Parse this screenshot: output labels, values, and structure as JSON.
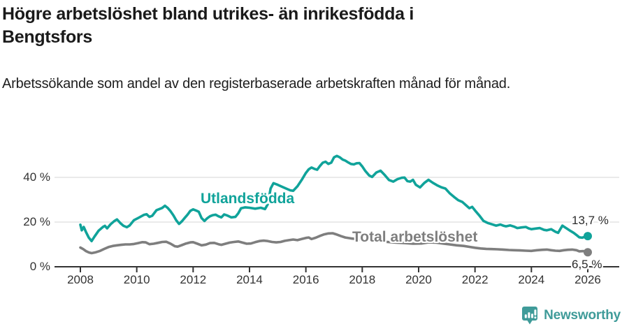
{
  "chart_data": {
    "type": "line",
    "title": "Högre arbetslöshet bland utrikes- än inrikesfödda i Bengtsfors",
    "subtitle": "Arbetssökande som andel av den registerbaserade arbetskraften månad för månad.",
    "legend_position": "inline-labels",
    "grid": true,
    "grid_color": "#dddddd",
    "axis_color": "#333333",
    "x_axis": {
      "ticks": [
        2008,
        2010,
        2012,
        2014,
        2016,
        2018,
        2020,
        2022,
        2024,
        2026
      ],
      "range": [
        2007.1,
        2027.1
      ],
      "unit": "year"
    },
    "y_axis": {
      "ticks": [
        0,
        20,
        40
      ],
      "tick_labels": [
        "0 %",
        "20 %",
        "40 %"
      ],
      "range": [
        0,
        53
      ],
      "unit": "percent"
    },
    "series": [
      {
        "name": "Utlandsfödda",
        "color": "#10a39a",
        "end_label": "13,7 %",
        "end_value": 13.7,
        "points": [
          [
            2008.0,
            18.8
          ],
          [
            2008.05,
            16.3
          ],
          [
            2008.12,
            17.8
          ],
          [
            2008.2,
            15.5
          ],
          [
            2008.3,
            13.0
          ],
          [
            2008.4,
            11.5
          ],
          [
            2008.5,
            13.5
          ],
          [
            2008.65,
            16.2
          ],
          [
            2008.8,
            17.8
          ],
          [
            2008.87,
            18.3
          ],
          [
            2008.95,
            17.2
          ],
          [
            2009.07,
            19.0
          ],
          [
            2009.2,
            20.4
          ],
          [
            2009.3,
            21.2
          ],
          [
            2009.42,
            19.5
          ],
          [
            2009.53,
            18.3
          ],
          [
            2009.65,
            17.7
          ],
          [
            2009.75,
            18.5
          ],
          [
            2009.9,
            20.8
          ],
          [
            2010.05,
            21.8
          ],
          [
            2010.25,
            23.2
          ],
          [
            2010.35,
            23.5
          ],
          [
            2010.45,
            22.3
          ],
          [
            2010.55,
            22.8
          ],
          [
            2010.7,
            25.3
          ],
          [
            2010.8,
            25.8
          ],
          [
            2010.9,
            26.3
          ],
          [
            2011.0,
            27.3
          ],
          [
            2011.1,
            26.3
          ],
          [
            2011.2,
            24.8
          ],
          [
            2011.3,
            23.0
          ],
          [
            2011.4,
            20.8
          ],
          [
            2011.5,
            19.2
          ],
          [
            2011.6,
            20.3
          ],
          [
            2011.7,
            21.8
          ],
          [
            2011.8,
            23.3
          ],
          [
            2011.9,
            25.0
          ],
          [
            2012.0,
            25.7
          ],
          [
            2012.1,
            25.2
          ],
          [
            2012.2,
            24.6
          ],
          [
            2012.3,
            21.8
          ],
          [
            2012.4,
            20.5
          ],
          [
            2012.5,
            21.7
          ],
          [
            2012.6,
            22.6
          ],
          [
            2012.7,
            23.1
          ],
          [
            2012.8,
            23.3
          ],
          [
            2012.9,
            22.6
          ],
          [
            2013.0,
            22.1
          ],
          [
            2013.1,
            23.4
          ],
          [
            2013.2,
            23.0
          ],
          [
            2013.35,
            22.1
          ],
          [
            2013.5,
            22.3
          ],
          [
            2013.6,
            23.9
          ],
          [
            2013.7,
            26.2
          ],
          [
            2013.85,
            26.6
          ],
          [
            2014.0,
            26.4
          ],
          [
            2014.2,
            26.0
          ],
          [
            2014.4,
            26.4
          ],
          [
            2014.55,
            25.8
          ],
          [
            2014.65,
            28.0
          ],
          [
            2014.75,
            35.0
          ],
          [
            2014.85,
            37.4
          ],
          [
            2015.0,
            36.7
          ],
          [
            2015.15,
            35.8
          ],
          [
            2015.3,
            35.0
          ],
          [
            2015.45,
            34.2
          ],
          [
            2015.55,
            34.0
          ],
          [
            2015.7,
            36.0
          ],
          [
            2015.85,
            38.8
          ],
          [
            2016.0,
            42.0
          ],
          [
            2016.1,
            43.6
          ],
          [
            2016.2,
            44.4
          ],
          [
            2016.3,
            43.8
          ],
          [
            2016.4,
            43.4
          ],
          [
            2016.5,
            45.1
          ],
          [
            2016.6,
            46.6
          ],
          [
            2016.7,
            47.0
          ],
          [
            2016.8,
            46.0
          ],
          [
            2016.9,
            46.6
          ],
          [
            2017.0,
            49.0
          ],
          [
            2017.1,
            49.6
          ],
          [
            2017.2,
            49.0
          ],
          [
            2017.3,
            48.0
          ],
          [
            2017.4,
            47.5
          ],
          [
            2017.5,
            46.7
          ],
          [
            2017.6,
            46.0
          ],
          [
            2017.7,
            45.8
          ],
          [
            2017.8,
            46.3
          ],
          [
            2017.9,
            46.4
          ],
          [
            2018.0,
            44.9
          ],
          [
            2018.1,
            43.0
          ],
          [
            2018.25,
            40.8
          ],
          [
            2018.35,
            40.2
          ],
          [
            2018.5,
            42.2
          ],
          [
            2018.65,
            43.0
          ],
          [
            2018.8,
            41.0
          ],
          [
            2018.95,
            38.8
          ],
          [
            2019.1,
            38.1
          ],
          [
            2019.25,
            39.2
          ],
          [
            2019.4,
            39.8
          ],
          [
            2019.5,
            39.9
          ],
          [
            2019.6,
            38.3
          ],
          [
            2019.7,
            38.1
          ],
          [
            2019.8,
            38.9
          ],
          [
            2019.9,
            36.7
          ],
          [
            2020.05,
            35.5
          ],
          [
            2020.2,
            37.5
          ],
          [
            2020.35,
            38.9
          ],
          [
            2020.5,
            37.6
          ],
          [
            2020.65,
            36.5
          ],
          [
            2020.8,
            35.6
          ],
          [
            2020.95,
            35.0
          ],
          [
            2021.1,
            32.9
          ],
          [
            2021.25,
            31.3
          ],
          [
            2021.4,
            29.8
          ],
          [
            2021.55,
            29.0
          ],
          [
            2021.7,
            27.3
          ],
          [
            2021.8,
            26.2
          ],
          [
            2021.9,
            26.8
          ],
          [
            2022.0,
            25.2
          ],
          [
            2022.15,
            23.0
          ],
          [
            2022.3,
            20.5
          ],
          [
            2022.45,
            19.6
          ],
          [
            2022.6,
            19.0
          ],
          [
            2022.75,
            18.4
          ],
          [
            2022.9,
            18.9
          ],
          [
            2023.0,
            18.4
          ],
          [
            2023.1,
            18.1
          ],
          [
            2023.25,
            18.5
          ],
          [
            2023.4,
            17.9
          ],
          [
            2023.5,
            17.3
          ],
          [
            2023.65,
            17.6
          ],
          [
            2023.8,
            17.8
          ],
          [
            2023.9,
            17.2
          ],
          [
            2024.0,
            16.8
          ],
          [
            2024.15,
            17.1
          ],
          [
            2024.3,
            17.3
          ],
          [
            2024.45,
            16.5
          ],
          [
            2024.55,
            16.3
          ],
          [
            2024.7,
            16.8
          ],
          [
            2024.85,
            15.7
          ],
          [
            2024.95,
            15.2
          ],
          [
            2025.1,
            18.4
          ],
          [
            2025.2,
            17.6
          ],
          [
            2025.35,
            16.3
          ],
          [
            2025.5,
            15.2
          ],
          [
            2025.6,
            14.2
          ],
          [
            2025.7,
            13.2
          ],
          [
            2025.8,
            13.0
          ],
          [
            2025.9,
            13.4
          ],
          [
            2026.0,
            13.7
          ]
        ]
      },
      {
        "name": "Total arbetslöshet",
        "color": "#7e7e7e",
        "end_label": "6,5 %",
        "end_value": 6.5,
        "points": [
          [
            2008.0,
            8.6
          ],
          [
            2008.1,
            7.9
          ],
          [
            2008.2,
            7.0
          ],
          [
            2008.3,
            6.4
          ],
          [
            2008.4,
            6.1
          ],
          [
            2008.55,
            6.5
          ],
          [
            2008.7,
            7.1
          ],
          [
            2008.85,
            8.0
          ],
          [
            2009.0,
            8.8
          ],
          [
            2009.15,
            9.3
          ],
          [
            2009.3,
            9.6
          ],
          [
            2009.45,
            9.8
          ],
          [
            2009.6,
            10.0
          ],
          [
            2009.75,
            10.0
          ],
          [
            2009.9,
            10.2
          ],
          [
            2010.05,
            10.6
          ],
          [
            2010.2,
            11.0
          ],
          [
            2010.32,
            10.9
          ],
          [
            2010.45,
            10.1
          ],
          [
            2010.6,
            10.3
          ],
          [
            2010.75,
            10.7
          ],
          [
            2010.9,
            11.1
          ],
          [
            2011.05,
            11.2
          ],
          [
            2011.2,
            10.3
          ],
          [
            2011.35,
            9.2
          ],
          [
            2011.45,
            9.0
          ],
          [
            2011.6,
            9.7
          ],
          [
            2011.75,
            10.4
          ],
          [
            2011.9,
            10.9
          ],
          [
            2012.0,
            11.0
          ],
          [
            2012.15,
            10.3
          ],
          [
            2012.3,
            9.6
          ],
          [
            2012.45,
            9.9
          ],
          [
            2012.6,
            10.6
          ],
          [
            2012.75,
            10.7
          ],
          [
            2012.9,
            10.1
          ],
          [
            2013.0,
            9.8
          ],
          [
            2013.15,
            10.3
          ],
          [
            2013.3,
            10.8
          ],
          [
            2013.45,
            11.1
          ],
          [
            2013.6,
            11.3
          ],
          [
            2013.75,
            10.8
          ],
          [
            2013.9,
            10.3
          ],
          [
            2014.05,
            10.4
          ],
          [
            2014.2,
            11.0
          ],
          [
            2014.35,
            11.5
          ],
          [
            2014.5,
            11.7
          ],
          [
            2014.65,
            11.5
          ],
          [
            2014.8,
            11.1
          ],
          [
            2014.95,
            10.9
          ],
          [
            2015.1,
            11.1
          ],
          [
            2015.25,
            11.6
          ],
          [
            2015.4,
            11.9
          ],
          [
            2015.55,
            12.2
          ],
          [
            2015.7,
            11.9
          ],
          [
            2015.85,
            12.4
          ],
          [
            2016.0,
            12.9
          ],
          [
            2016.1,
            13.1
          ],
          [
            2016.2,
            12.4
          ],
          [
            2016.35,
            13.0
          ],
          [
            2016.5,
            13.8
          ],
          [
            2016.65,
            14.5
          ],
          [
            2016.8,
            14.9
          ],
          [
            2016.95,
            15.0
          ],
          [
            2017.1,
            14.4
          ],
          [
            2017.25,
            13.7
          ],
          [
            2017.4,
            13.1
          ],
          [
            2017.6,
            12.7
          ],
          [
            2017.8,
            12.4
          ],
          [
            2018.0,
            12.2
          ],
          [
            2018.3,
            11.9
          ],
          [
            2018.6,
            11.5
          ],
          [
            2018.9,
            11.1
          ],
          [
            2019.2,
            10.8
          ],
          [
            2019.5,
            10.6
          ],
          [
            2019.8,
            10.3
          ],
          [
            2020.1,
            10.4
          ],
          [
            2020.35,
            10.9
          ],
          [
            2020.6,
            10.8
          ],
          [
            2020.85,
            10.4
          ],
          [
            2021.1,
            10.0
          ],
          [
            2021.35,
            9.6
          ],
          [
            2021.6,
            9.3
          ],
          [
            2021.8,
            8.9
          ],
          [
            2022.0,
            8.5
          ],
          [
            2022.2,
            8.2
          ],
          [
            2022.4,
            8.0
          ],
          [
            2022.6,
            7.9
          ],
          [
            2022.8,
            7.8
          ],
          [
            2023.0,
            7.7
          ],
          [
            2023.2,
            7.5
          ],
          [
            2023.4,
            7.4
          ],
          [
            2023.6,
            7.3
          ],
          [
            2023.8,
            7.2
          ],
          [
            2024.0,
            7.1
          ],
          [
            2024.2,
            7.4
          ],
          [
            2024.4,
            7.6
          ],
          [
            2024.55,
            7.7
          ],
          [
            2024.7,
            7.4
          ],
          [
            2024.85,
            7.2
          ],
          [
            2025.0,
            7.1
          ],
          [
            2025.15,
            7.4
          ],
          [
            2025.3,
            7.6
          ],
          [
            2025.45,
            7.7
          ],
          [
            2025.6,
            7.4
          ],
          [
            2025.7,
            6.9
          ],
          [
            2025.85,
            7.0
          ],
          [
            2026.0,
            6.5
          ]
        ]
      }
    ]
  },
  "branding": {
    "logo_text": "Newsworthy",
    "logo_color": "#3f9b99",
    "logo_icon": "bar-chart-speech-bubble-icon"
  }
}
